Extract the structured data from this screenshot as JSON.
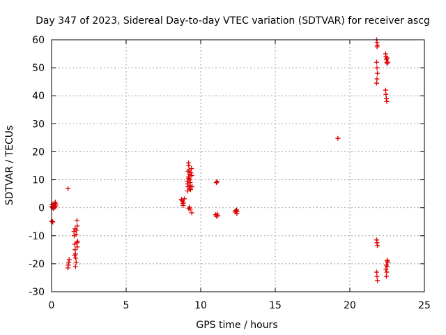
{
  "chart_data": {
    "type": "scatter",
    "title": "Day 347 of 2023, Sidereal Day-to-day VTEC variation (SDTVAR) for receiver ascg",
    "xlabel": "GPS time / hours",
    "ylabel": "SDTVAR / TECUs",
    "xlim": [
      0,
      25
    ],
    "ylim": [
      -30,
      60
    ],
    "xticks": [
      0,
      5,
      10,
      15,
      20,
      25
    ],
    "yticks": [
      -30,
      -20,
      -10,
      0,
      10,
      20,
      30,
      40,
      50,
      60
    ],
    "grid": true,
    "marker": "+",
    "color": "#dd0000",
    "series": [
      {
        "name": "SDTVAR",
        "points": [
          [
            0.0,
            0.5
          ],
          [
            0.03,
            1.2
          ],
          [
            0.06,
            0.0
          ],
          [
            0.1,
            1.0
          ],
          [
            0.13,
            -0.3
          ],
          [
            0.16,
            0.8
          ],
          [
            0.2,
            1.5
          ],
          [
            0.22,
            0.2
          ],
          [
            0.25,
            2.0
          ],
          [
            0.28,
            0.6
          ],
          [
            0.3,
            1.3
          ],
          [
            0.0,
            -4.8
          ],
          [
            0.05,
            -4.9
          ],
          [
            0.08,
            -5.1
          ],
          [
            1.1,
            6.8
          ],
          [
            1.1,
            -21.5
          ],
          [
            1.12,
            -20.5
          ],
          [
            1.15,
            -19.5
          ],
          [
            1.18,
            -18.5
          ],
          [
            1.5,
            -8.5
          ],
          [
            1.52,
            -10.0
          ],
          [
            1.55,
            -13.0
          ],
          [
            1.58,
            -15.0
          ],
          [
            1.6,
            -16.5
          ],
          [
            1.62,
            -18.0
          ],
          [
            1.65,
            -19.5
          ],
          [
            1.6,
            -21.0
          ],
          [
            1.55,
            -17.0
          ],
          [
            1.7,
            -4.5
          ],
          [
            1.72,
            -6.5
          ],
          [
            1.68,
            -8.0
          ],
          [
            1.7,
            -12.5
          ],
          [
            1.72,
            -14.0
          ],
          [
            1.75,
            -12.0
          ],
          [
            1.65,
            -9.5
          ],
          [
            1.58,
            -7.5
          ],
          [
            8.7,
            3.0
          ],
          [
            8.75,
            2.5
          ],
          [
            8.8,
            1.5
          ],
          [
            8.82,
            0.8
          ],
          [
            8.85,
            2.0
          ],
          [
            8.9,
            3.2
          ],
          [
            9.1,
            9.5
          ],
          [
            9.12,
            8.5
          ],
          [
            9.15,
            7.5
          ],
          [
            9.12,
            6.0
          ],
          [
            9.18,
            16.0
          ],
          [
            9.2,
            15.0
          ],
          [
            9.22,
            13.5
          ],
          [
            9.25,
            12.0
          ],
          [
            9.18,
            11.0
          ],
          [
            9.28,
            10.0
          ],
          [
            9.3,
            9.0
          ],
          [
            9.25,
            7.0
          ],
          [
            9.32,
            6.5
          ],
          [
            9.35,
            12.5
          ],
          [
            9.38,
            14.0
          ],
          [
            9.4,
            11.5
          ],
          [
            9.42,
            7.5
          ],
          [
            9.3,
            8.0
          ],
          [
            9.2,
            10.5
          ],
          [
            9.15,
            13.0
          ],
          [
            9.2,
            -0.3
          ],
          [
            9.25,
            0.2
          ],
          [
            9.3,
            -0.5
          ],
          [
            9.4,
            -1.8
          ],
          [
            11.05,
            9.0
          ],
          [
            11.1,
            9.4
          ],
          [
            11.0,
            -2.5
          ],
          [
            11.05,
            -3.0
          ],
          [
            11.1,
            -2.2
          ],
          [
            11.15,
            -2.8
          ],
          [
            12.3,
            -1.5
          ],
          [
            12.35,
            -1.0
          ],
          [
            12.4,
            -0.8
          ],
          [
            12.42,
            -2.0
          ],
          [
            12.45,
            -1.3
          ],
          [
            19.2,
            24.8
          ],
          [
            21.8,
            60.0
          ],
          [
            21.82,
            59.0
          ],
          [
            21.85,
            58.0
          ],
          [
            21.83,
            57.5
          ],
          [
            21.8,
            52.0
          ],
          [
            21.82,
            50.0
          ],
          [
            21.85,
            48.0
          ],
          [
            21.82,
            46.0
          ],
          [
            21.8,
            44.5
          ],
          [
            21.8,
            -11.5
          ],
          [
            21.82,
            -12.5
          ],
          [
            21.85,
            -13.5
          ],
          [
            21.8,
            -23.0
          ],
          [
            21.82,
            -24.5
          ],
          [
            21.85,
            -26.0
          ],
          [
            22.4,
            55.0
          ],
          [
            22.42,
            54.0
          ],
          [
            22.45,
            53.0
          ],
          [
            22.48,
            52.0
          ],
          [
            22.5,
            51.5
          ],
          [
            22.55,
            52.0
          ],
          [
            22.5,
            53.5
          ],
          [
            22.4,
            42.0
          ],
          [
            22.42,
            40.5
          ],
          [
            22.45,
            39.0
          ],
          [
            22.48,
            38.0
          ],
          [
            22.5,
            -19.0
          ],
          [
            22.55,
            -19.5
          ],
          [
            22.45,
            -20.5
          ],
          [
            22.5,
            -21.0
          ],
          [
            22.42,
            -22.0
          ],
          [
            22.48,
            -23.0
          ],
          [
            22.45,
            -24.5
          ],
          [
            22.52,
            -18.8
          ]
        ]
      }
    ]
  }
}
